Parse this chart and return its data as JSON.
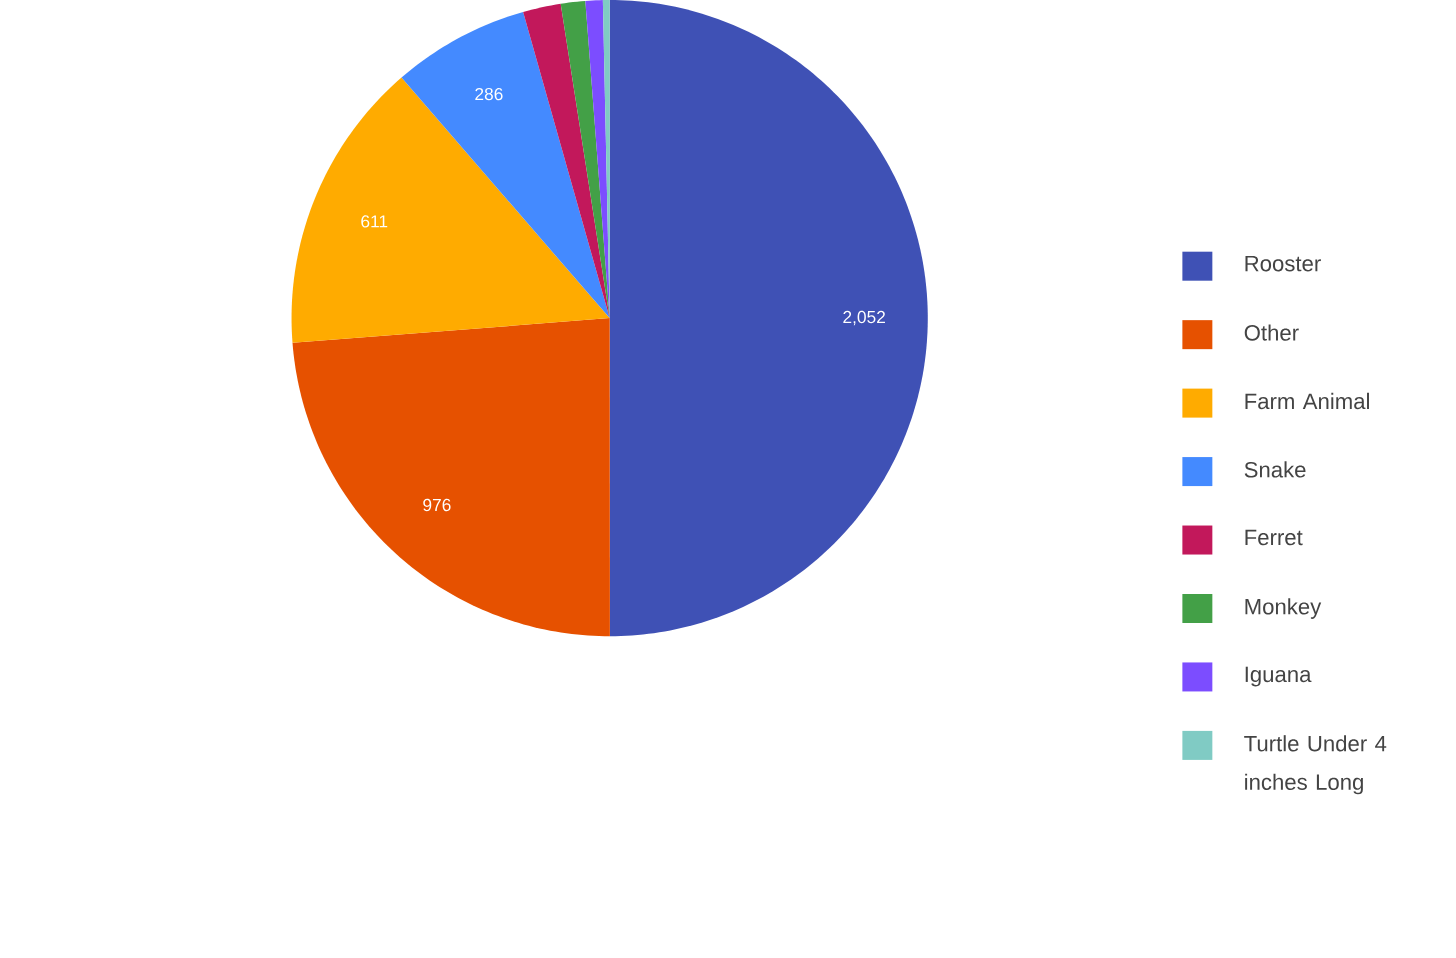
{
  "chart_data": {
    "type": "pie",
    "categories": [
      "Rooster",
      "Other",
      "Farm Animal",
      "Snake",
      "Ferret",
      "Monkey",
      "Iguana",
      "Turtle Under 4 inches Long"
    ],
    "values": [
      2052,
      976,
      611,
      286,
      79,
      51,
      36,
      14
    ],
    "colors": [
      "#3f51b5",
      "#e65100",
      "#ffab00",
      "#448aff",
      "#c2185b",
      "#43a047",
      "#7c4dff",
      "#80cbc4"
    ],
    "value_labels": [
      "2,052",
      "976",
      "611",
      "286",
      null,
      null,
      null,
      null
    ],
    "legend": "right"
  }
}
